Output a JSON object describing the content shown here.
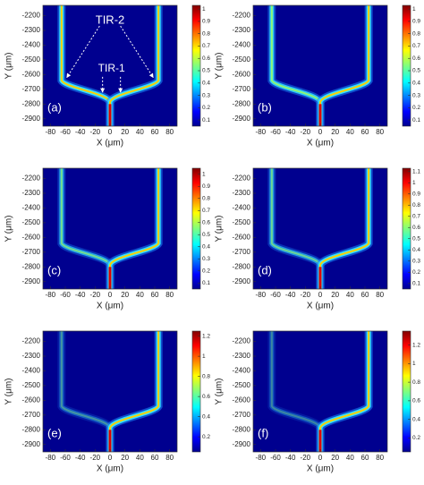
{
  "chart_data": [
    {
      "type": "heatmap",
      "panel_label": "(a)",
      "xlabel": "X (μm)",
      "ylabel": "Y (μm)",
      "xlim": [
        -90,
        90
      ],
      "ylim": [
        -2950,
        -2130
      ],
      "xticks": [
        -80,
        -60,
        -40,
        -20,
        0,
        20,
        40,
        60,
        80
      ],
      "yticks": [
        -2200,
        -2300,
        -2400,
        -2500,
        -2600,
        -2700,
        -2800,
        -2900
      ],
      "clim": [
        0.05,
        1.03
      ],
      "cticks": [
        0.1,
        0.2,
        0.3,
        0.4,
        0.5,
        0.6,
        0.7,
        0.8,
        0.9,
        1
      ],
      "annotations": [
        "TIR-2",
        "TIR-1"
      ]
    },
    {
      "type": "heatmap",
      "panel_label": "(b)",
      "xlabel": "X (μm)",
      "ylabel": "Y (μm)",
      "xlim": [
        -90,
        90
      ],
      "ylim": [
        -2950,
        -2130
      ],
      "xticks": [
        -80,
        -60,
        -40,
        -20,
        0,
        20,
        40,
        60,
        80
      ],
      "yticks": [
        -2200,
        -2300,
        -2400,
        -2500,
        -2600,
        -2700,
        -2800,
        -2900
      ],
      "clim": [
        0.05,
        1.03
      ],
      "cticks": [
        0.1,
        0.2,
        0.3,
        0.4,
        0.5,
        0.6,
        0.7,
        0.8,
        0.9,
        1
      ]
    },
    {
      "type": "heatmap",
      "panel_label": "(c)",
      "xlabel": "X (μm)",
      "ylabel": "Y (μm)",
      "xlim": [
        -90,
        90
      ],
      "ylim": [
        -2950,
        -2130
      ],
      "xticks": [
        -80,
        -60,
        -40,
        -20,
        0,
        20,
        40,
        60,
        80
      ],
      "yticks": [
        -2200,
        -2300,
        -2400,
        -2500,
        -2600,
        -2700,
        -2800,
        -2900
      ],
      "clim": [
        0.05,
        1.05
      ],
      "cticks": [
        0.1,
        0.2,
        0.3,
        0.4,
        0.5,
        0.6,
        0.7,
        0.8,
        0.9,
        1
      ]
    },
    {
      "type": "heatmap",
      "panel_label": "(d)",
      "xlabel": "X (μm)",
      "ylabel": "Y (μm)",
      "xlim": [
        -90,
        90
      ],
      "ylim": [
        -2950,
        -2130
      ],
      "xticks": [
        -80,
        -60,
        -40,
        -20,
        0,
        20,
        40,
        60,
        80
      ],
      "yticks": [
        -2200,
        -2300,
        -2400,
        -2500,
        -2600,
        -2700,
        -2800,
        -2900
      ],
      "clim": [
        0.05,
        1.13
      ],
      "cticks": [
        0.1,
        0.2,
        0.3,
        0.4,
        0.5,
        0.6,
        0.7,
        0.8,
        0.9,
        1,
        1.1
      ]
    },
    {
      "type": "heatmap",
      "panel_label": "(e)",
      "xlabel": "X (μm)",
      "ylabel": "Y (μm)",
      "xlim": [
        -90,
        90
      ],
      "ylim": [
        -2950,
        -2130
      ],
      "xticks": [
        -80,
        -60,
        -40,
        -20,
        0,
        20,
        40,
        60,
        80
      ],
      "yticks": [
        -2200,
        -2300,
        -2400,
        -2500,
        -2600,
        -2700,
        -2800,
        -2900
      ],
      "clim": [
        0.05,
        1.25
      ],
      "cticks": [
        0.2,
        0.4,
        0.6,
        0.8,
        1,
        1.2
      ]
    },
    {
      "type": "heatmap",
      "panel_label": "(f)",
      "xlabel": "X (μm)",
      "ylabel": "Y (μm)",
      "xlim": [
        -90,
        90
      ],
      "ylim": [
        -2950,
        -2130
      ],
      "xticks": [
        -80,
        -60,
        -40,
        -20,
        0,
        20,
        40,
        60,
        80
      ],
      "yticks": [
        -2200,
        -2300,
        -2400,
        -2500,
        -2600,
        -2700,
        -2800,
        -2900
      ],
      "clim": [
        0.05,
        1.35
      ],
      "cticks": [
        0.2,
        0.4,
        0.6,
        0.8,
        1,
        1.2
      ]
    }
  ]
}
